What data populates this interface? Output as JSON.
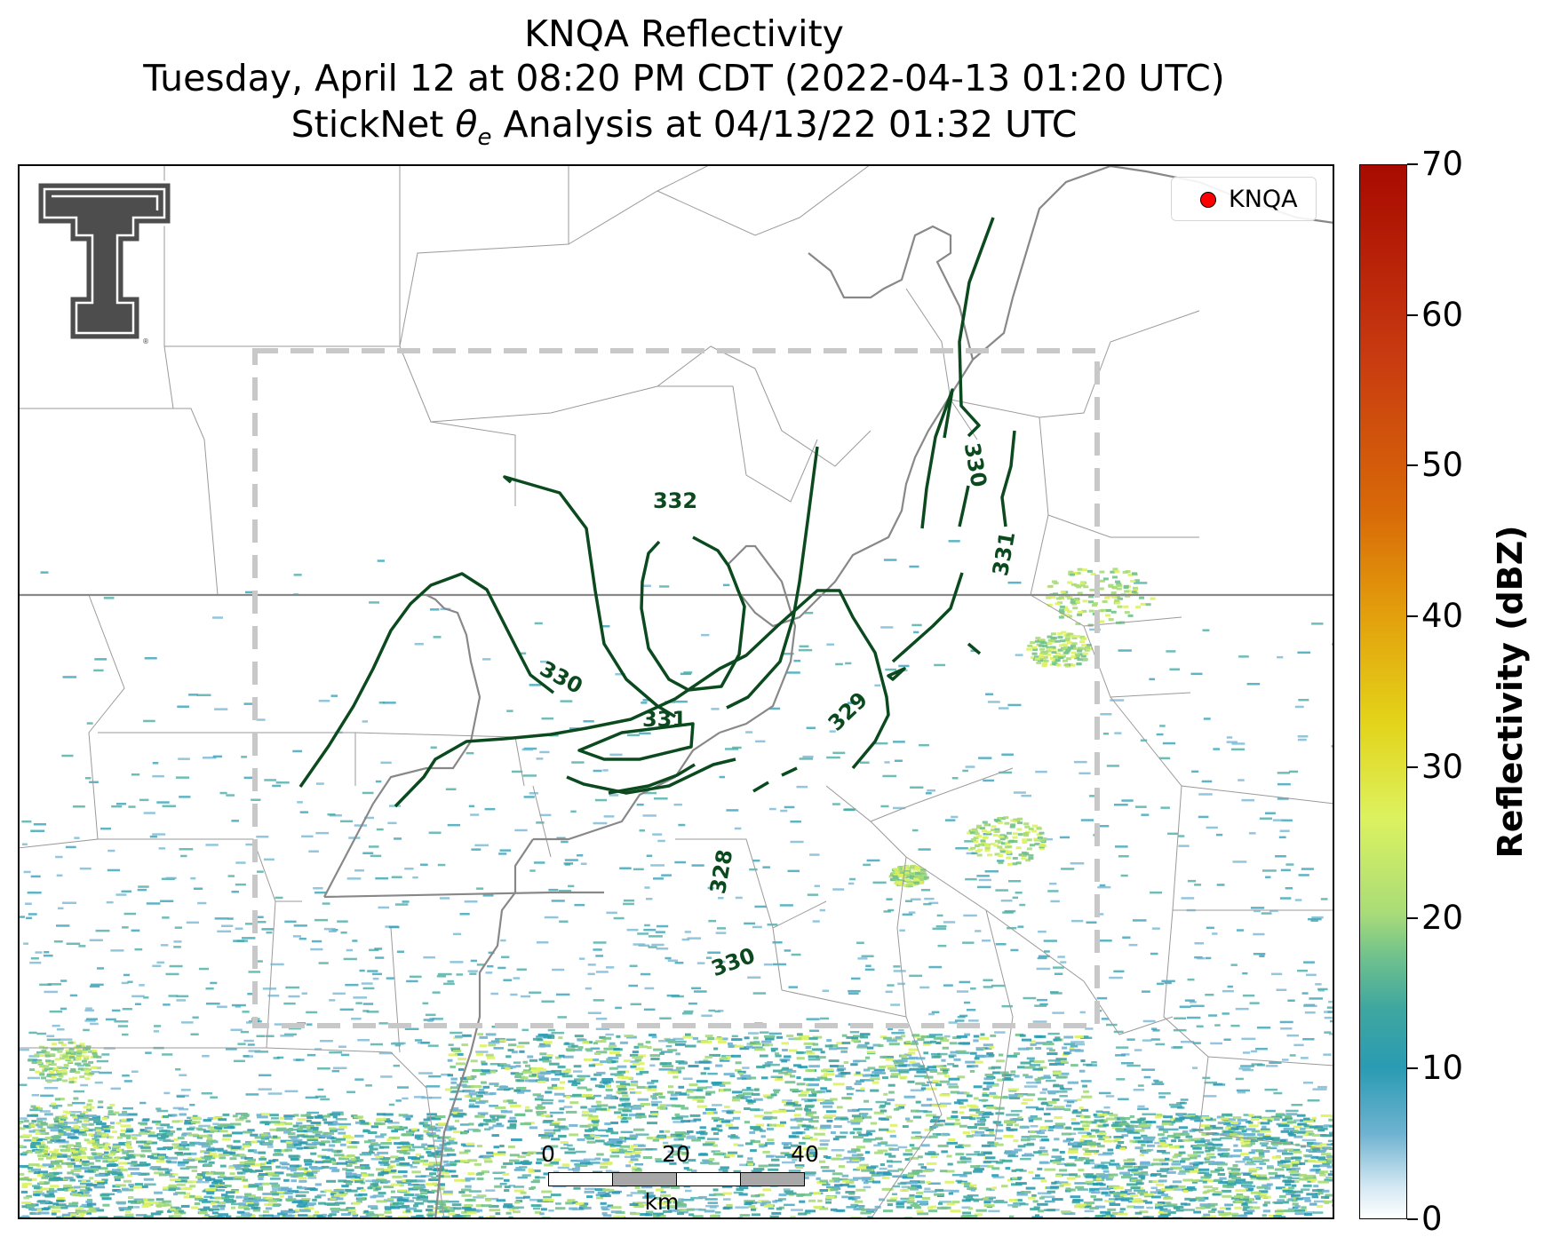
{
  "title": {
    "line1": "KNQA Reflectivity",
    "line2": "Tuesday, April 12 at 08:20 PM CDT (2022-04-13 01:20 UTC)",
    "line3_prefix": "StickNet ",
    "line3_symbol": "θ",
    "line3_subscript": "e",
    "line3_suffix": " Analysis at 04/13/22 01:32 UTC"
  },
  "legend": {
    "label": "KNQA",
    "marker_color": "#ff0000"
  },
  "colorbar": {
    "label": "Reflectivity (dBZ)",
    "min": 0,
    "max": 70,
    "ticks": [
      "0",
      "10",
      "20",
      "30",
      "40",
      "50",
      "60",
      "70"
    ]
  },
  "scalebar": {
    "ticks": [
      "0",
      "20",
      "40"
    ],
    "unit": "km"
  },
  "contours": {
    "color": "#0b4a1e",
    "labels": [
      "332",
      "331",
      "330",
      "330",
      "329",
      "331",
      "328",
      "330"
    ]
  },
  "logo": {
    "name": "Texas Tech Double T"
  }
}
